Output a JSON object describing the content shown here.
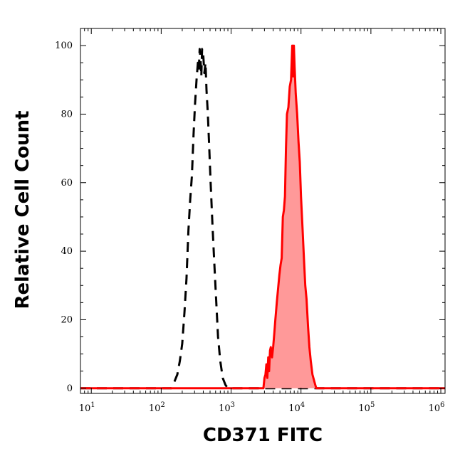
{
  "chart_data": {
    "type": "area",
    "xlabel": "CD371 FITC",
    "ylabel": "Relative Cell Count",
    "x_scale": "log",
    "xlim": [
      7,
      1150000
    ],
    "ylim": [
      -1.5,
      105
    ],
    "x_ticks": [
      {
        "base": "10",
        "exp": "1",
        "value": 10
      },
      {
        "base": "10",
        "exp": "2",
        "value": 100
      },
      {
        "base": "10",
        "exp": "3",
        "value": 1000
      },
      {
        "base": "10",
        "exp": "4",
        "value": 10000
      },
      {
        "base": "10",
        "exp": "5",
        "value": 100000
      },
      {
        "base": "10",
        "exp": "6",
        "value": 1000000
      }
    ],
    "y_ticks": [
      {
        "label": "0",
        "value": 0
      },
      {
        "label": "20",
        "value": 20
      },
      {
        "label": "40",
        "value": 40
      },
      {
        "label": "60",
        "value": 60
      },
      {
        "label": "80",
        "value": 80
      },
      {
        "label": "100",
        "value": 100
      }
    ],
    "series": [
      {
        "style": "dashed",
        "color": "#000000",
        "fill": "none",
        "points": [
          [
            7,
            0
          ],
          [
            140,
            0
          ],
          [
            155,
            2
          ],
          [
            170,
            4
          ],
          [
            185,
            8
          ],
          [
            200,
            13
          ],
          [
            215,
            22
          ],
          [
            230,
            32
          ],
          [
            245,
            46
          ],
          [
            260,
            55
          ],
          [
            275,
            62
          ],
          [
            290,
            74
          ],
          [
            305,
            83
          ],
          [
            320,
            90
          ],
          [
            335,
            95
          ],
          [
            345,
            93
          ],
          [
            355,
            99
          ],
          [
            365,
            96
          ],
          [
            375,
            91
          ],
          [
            385,
            99
          ],
          [
            400,
            97
          ],
          [
            415,
            92
          ],
          [
            430,
            95
          ],
          [
            445,
            87
          ],
          [
            465,
            80
          ],
          [
            485,
            71
          ],
          [
            510,
            60
          ],
          [
            540,
            48
          ],
          [
            570,
            38
          ],
          [
            610,
            26
          ],
          [
            650,
            15
          ],
          [
            700,
            8
          ],
          [
            760,
            3
          ],
          [
            830,
            1
          ],
          [
            900,
            0
          ],
          [
            1150000,
            0
          ]
        ]
      },
      {
        "style": "solid",
        "color": "#ff0000",
        "fill": "#ff9999",
        "points": [
          [
            7,
            0
          ],
          [
            2900,
            0
          ],
          [
            3000,
            3
          ],
          [
            3100,
            4
          ],
          [
            3200,
            7
          ],
          [
            3300,
            3
          ],
          [
            3400,
            9
          ],
          [
            3500,
            5
          ],
          [
            3600,
            11
          ],
          [
            3700,
            12
          ],
          [
            3850,
            9
          ],
          [
            4000,
            12
          ],
          [
            4150,
            16
          ],
          [
            4300,
            20
          ],
          [
            4500,
            25
          ],
          [
            4700,
            29
          ],
          [
            4900,
            33
          ],
          [
            5100,
            36
          ],
          [
            5300,
            38
          ],
          [
            5500,
            50
          ],
          [
            5700,
            52
          ],
          [
            5900,
            56
          ],
          [
            6100,
            70
          ],
          [
            6300,
            80
          ],
          [
            6600,
            82
          ],
          [
            6900,
            88
          ],
          [
            7200,
            90
          ],
          [
            7500,
            100
          ],
          [
            7700,
            91
          ],
          [
            7900,
            100
          ],
          [
            8100,
            94
          ],
          [
            8400,
            86
          ],
          [
            8800,
            80
          ],
          [
            9200,
            72
          ],
          [
            9600,
            66
          ],
          [
            10000,
            56
          ],
          [
            10500,
            47
          ],
          [
            11000,
            38
          ],
          [
            11500,
            30
          ],
          [
            12000,
            26
          ],
          [
            12600,
            18
          ],
          [
            13200,
            12
          ],
          [
            13800,
            8
          ],
          [
            14600,
            4
          ],
          [
            15500,
            2
          ],
          [
            16500,
            0
          ],
          [
            1150000,
            0
          ]
        ]
      }
    ]
  }
}
